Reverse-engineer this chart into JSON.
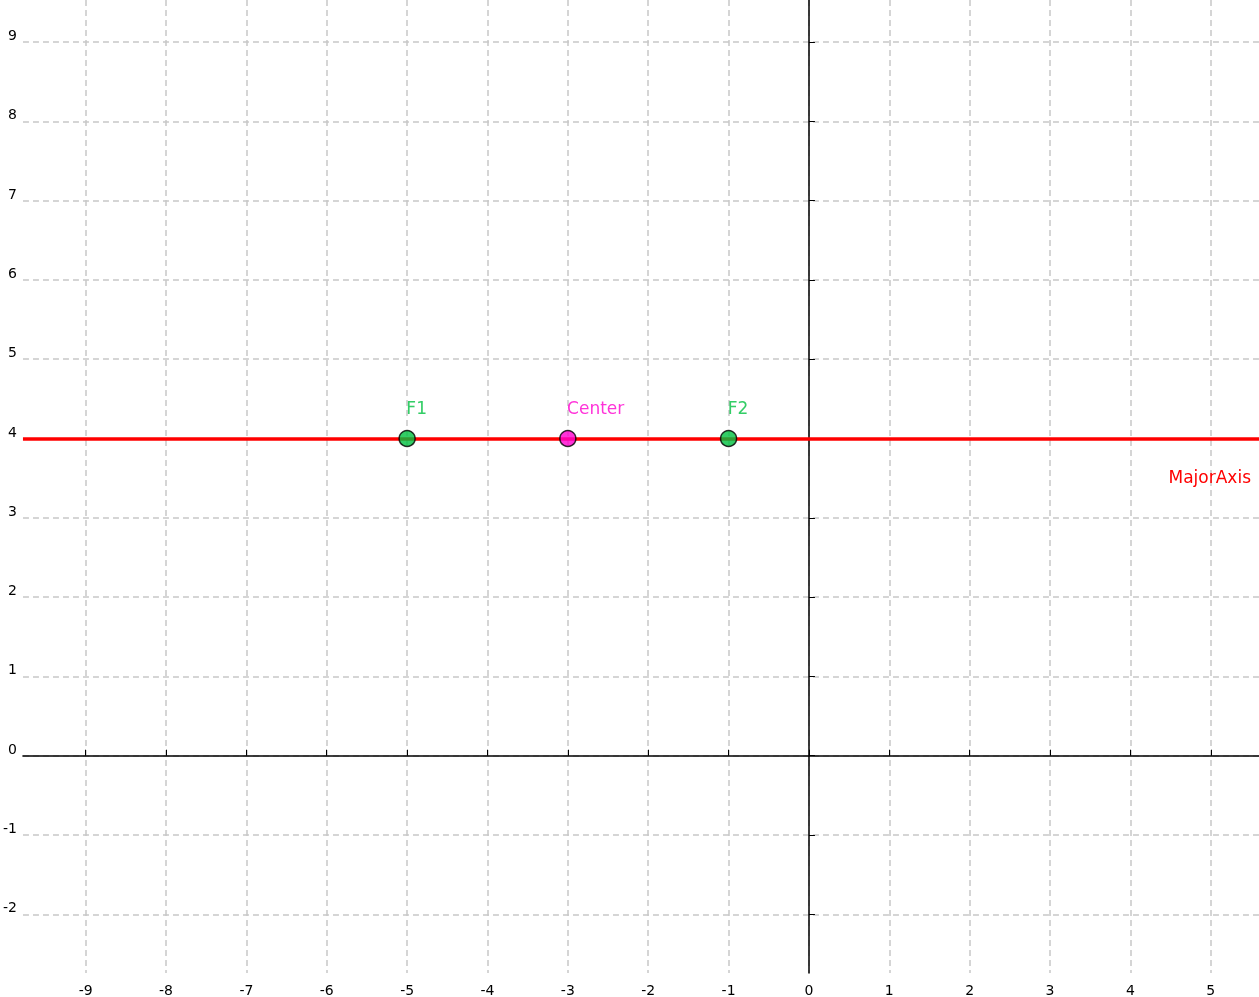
{
  "chart_data": {
    "type": "scatter",
    "xlim": [
      -9.78,
      5.6
    ],
    "ylim": [
      -2.74,
      9.53
    ],
    "xticks": [
      -9,
      -8,
      -7,
      -6,
      -5,
      -4,
      -3,
      -2,
      -1,
      0,
      1,
      2,
      3,
      4,
      5
    ],
    "yticks": [
      -2,
      -1,
      0,
      1,
      2,
      3,
      4,
      5,
      6,
      7,
      8,
      9
    ],
    "grid": true,
    "marker": "circle",
    "legend": false,
    "series": [
      {
        "name": "F1",
        "color": "#00c040",
        "x": [
          -5
        ],
        "values": [
          4
        ]
      },
      {
        "name": "Center",
        "color": "#ff00d0",
        "x": [
          -3
        ],
        "values": [
          4
        ]
      },
      {
        "name": "F2",
        "color": "#00c040",
        "x": [
          -1
        ],
        "values": [
          4
        ]
      }
    ],
    "ref_lines": [
      {
        "axis": "y",
        "value": 4,
        "label": "MajorAxis",
        "color": "#ff0000"
      }
    ]
  }
}
